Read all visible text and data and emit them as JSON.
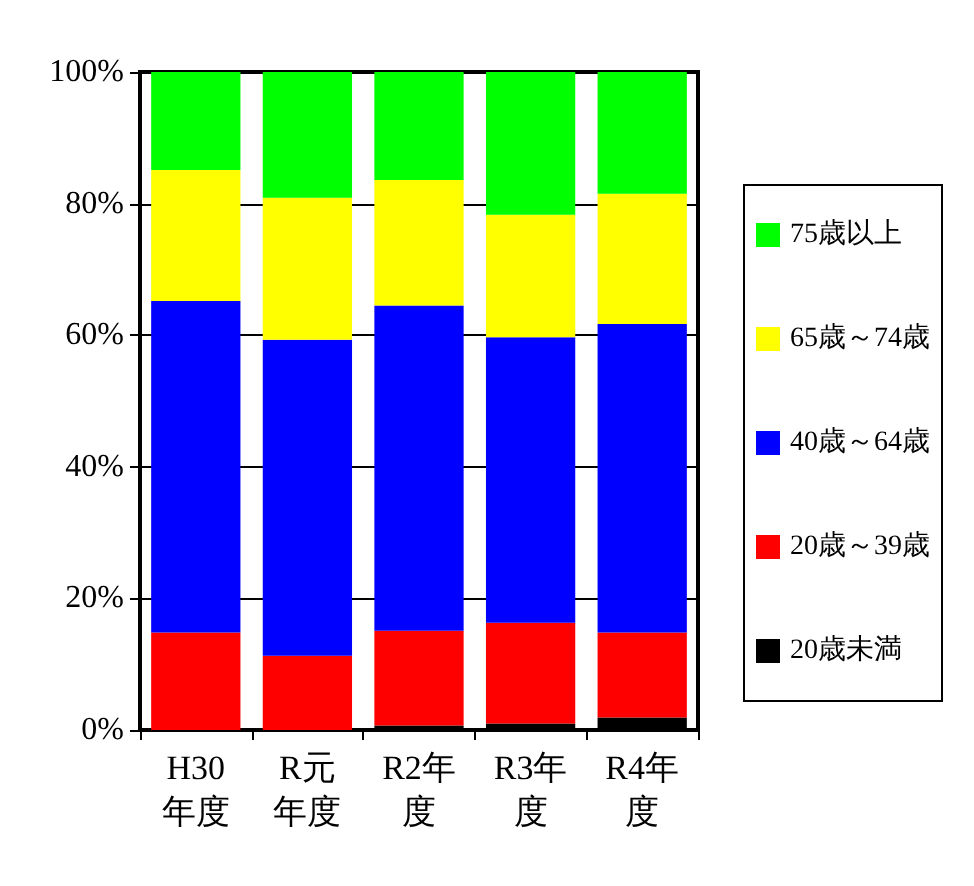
{
  "chart_data": {
    "type": "bar",
    "stacked": true,
    "categories": [
      "H30年度",
      "R元年度",
      "R2年度",
      "R3年度",
      "R4年度"
    ],
    "series": [
      {
        "name": "20歳未満",
        "color": "#000000",
        "values": [
          0,
          0,
          0.7,
          1.0,
          1.9
        ]
      },
      {
        "name": "20歳～39歳",
        "color": "#ff0000",
        "values": [
          14.8,
          11.3,
          14.4,
          15.3,
          12.9
        ]
      },
      {
        "name": "40歳～64歳",
        "color": "#0000ff",
        "values": [
          50.4,
          48.0,
          49.4,
          43.4,
          46.9
        ]
      },
      {
        "name": "65歳～74歳",
        "color": "#ffff00",
        "values": [
          19.9,
          21.6,
          19.1,
          18.6,
          19.8
        ]
      },
      {
        "name": "75歳以上",
        "color": "#00ff00",
        "values": [
          14.9,
          19.1,
          16.4,
          21.7,
          18.5
        ]
      }
    ],
    "ylim": [
      0,
      100
    ],
    "yticks": [
      {
        "value": 0,
        "label": "0%"
      },
      {
        "value": 20,
        "label": "20%"
      },
      {
        "value": 40,
        "label": "40%"
      },
      {
        "value": 60,
        "label": "60%"
      },
      {
        "value": 80,
        "label": "80%"
      },
      {
        "value": 100,
        "label": "100%"
      }
    ],
    "grid": "y",
    "legend": "right"
  }
}
